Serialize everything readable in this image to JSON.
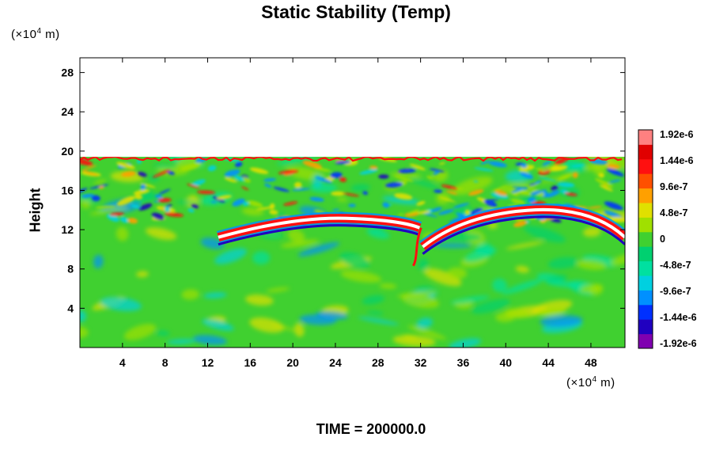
{
  "chart_data": {
    "type": "heatmap",
    "title": "Static Stability (Temp)",
    "ylabel": "Height",
    "xlabel": "",
    "x_unit_prefix": "(×10",
    "x_unit_exp": "4",
    "x_unit_suffix": " m)",
    "y_unit_prefix": "(×10",
    "y_unit_exp": "4",
    "y_unit_suffix": " m)",
    "x_ticks": [
      "4",
      "8",
      "12",
      "16",
      "20",
      "24",
      "28",
      "32",
      "36",
      "40",
      "44",
      "48"
    ],
    "y_ticks": [
      "4",
      "8",
      "12",
      "16",
      "20",
      "24",
      "28"
    ],
    "xlim": [
      0,
      51.2
    ],
    "ylim": [
      0,
      29.5
    ],
    "colorbar_labels": [
      "1.92e-6",
      "1.44e-6",
      "9.6e-7",
      "4.8e-7",
      "0",
      "-4.8e-7",
      "-9.6e-7",
      "-1.44e-6",
      "-1.92e-6"
    ],
    "colorbar_range": [
      -1.92e-06,
      1.92e-06
    ],
    "colors": [
      "#7f00b0",
      "#2000c0",
      "#0030ff",
      "#0090ff",
      "#00d0e0",
      "#00e0a0",
      "#00d070",
      "#40d030",
      "#a0e000",
      "#e0e000",
      "#ffa000",
      "#ff5000",
      "#ff1010",
      "#e00000",
      "#ff8080"
    ],
    "features": {
      "domain_top_height": 19.5,
      "inversion_layer_height": 13.0,
      "front_x": 32.5
    },
    "time_text": "TIME = 200000.0"
  }
}
